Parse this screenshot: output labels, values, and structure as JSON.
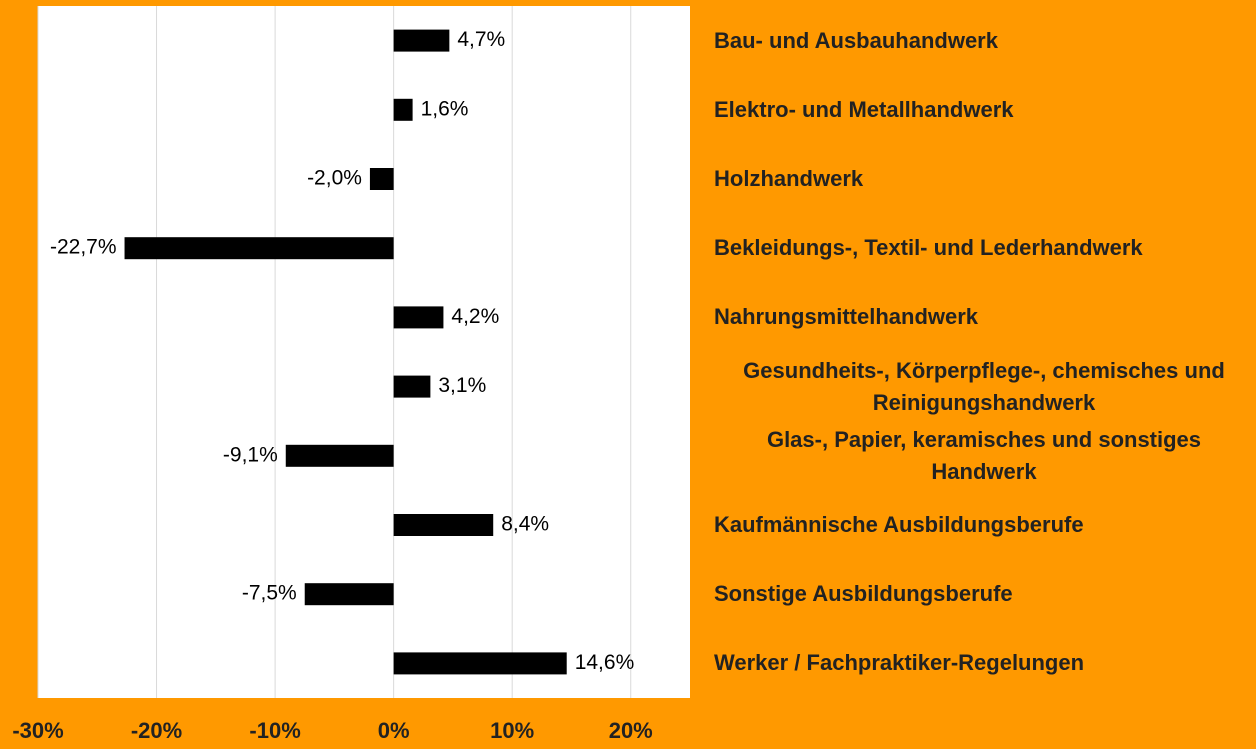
{
  "chart_data": {
    "type": "barh",
    "categories": [
      "Bau- und Ausbauhandwerk",
      "Elektro- und Metallhandwerk",
      "Holzhandwerk",
      "Bekleidungs-, Textil- und Lederhandwerk",
      "Nahrungsmittelhandwerk",
      "Gesundheits-, Körperpflege-, chemisches und Reinigungshandwerk",
      "Glas-, Papier, keramisches und sonstiges Handwerk",
      "Kaufmännische Ausbildungsberufe",
      "Sonstige Ausbildungsberufe",
      "Werker / Fachpraktiker-Regelungen"
    ],
    "values": [
      4.7,
      1.6,
      -2.0,
      -22.7,
      4.2,
      3.1,
      -9.1,
      8.4,
      -7.5,
      14.6
    ],
    "value_labels": [
      "4,7%",
      "1,6%",
      "-2,0%",
      "-22,7%",
      "4,2%",
      "3,1%",
      "-9,1%",
      "8,4%",
      "-7,5%",
      "14,6%"
    ],
    "color": "#000000",
    "xlim": [
      -30,
      25
    ],
    "xticks": [
      {
        "value": -30,
        "label": "-30%"
      },
      {
        "value": -20,
        "label": "-20%"
      },
      {
        "value": -10,
        "label": "-10%"
      },
      {
        "value": 0,
        "label": "0%"
      },
      {
        "value": 10,
        "label": "10%"
      },
      {
        "value": 20,
        "label": "20%"
      }
    ],
    "grid": true
  }
}
